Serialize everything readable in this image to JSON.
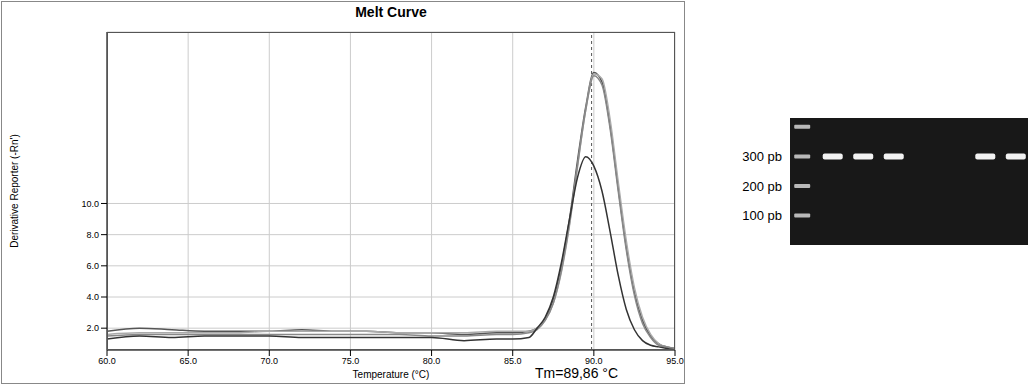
{
  "chart_data": [
    {
      "type": "line",
      "title": "Melt Curve",
      "x_label": "Temperature (°C)",
      "y_label": "Derivative Reporter (-Rn')",
      "x": [
        60,
        62,
        64,
        66,
        68,
        70,
        72,
        74,
        76,
        78,
        80,
        82,
        84,
        85,
        86,
        86.5,
        87,
        87.5,
        88,
        88.5,
        89,
        89.5,
        90,
        90.5,
        91,
        91.5,
        92,
        92.5,
        93,
        93.5,
        94,
        94.5,
        95
      ],
      "series": [
        {
          "color": "#555555",
          "values": [
            1.8,
            2.0,
            1.9,
            1.8,
            1.8,
            1.8,
            1.9,
            1.8,
            1.8,
            1.7,
            1.7,
            1.6,
            1.7,
            1.7,
            1.8,
            2.0,
            2.6,
            3.8,
            6.0,
            9.0,
            12.8,
            16.2,
            18.4,
            17.8,
            15.0,
            11.0,
            7.2,
            4.3,
            2.5,
            1.5,
            1.0,
            0.8,
            0.7
          ]
        },
        {
          "color": "#aaaaaa",
          "values": [
            1.6,
            1.7,
            1.7,
            1.7,
            1.7,
            1.8,
            1.8,
            1.8,
            1.8,
            1.7,
            1.7,
            1.7,
            1.8,
            1.8,
            1.8,
            2.0,
            2.5,
            3.6,
            5.6,
            8.6,
            12.4,
            16.0,
            18.3,
            18.0,
            15.4,
            11.4,
            7.6,
            4.6,
            2.7,
            1.6,
            1.0,
            0.8,
            0.7
          ]
        },
        {
          "color": "#888888",
          "values": [
            1.5,
            1.6,
            1.6,
            1.6,
            1.6,
            1.6,
            1.6,
            1.6,
            1.6,
            1.6,
            1.5,
            1.5,
            1.6,
            1.6,
            1.7,
            1.9,
            2.5,
            3.6,
            5.7,
            8.7,
            12.5,
            16.0,
            18.2,
            17.6,
            14.8,
            10.8,
            7.0,
            4.1,
            2.3,
            1.4,
            0.9,
            0.8,
            0.7
          ]
        },
        {
          "color": "#333333",
          "values": [
            1.3,
            1.5,
            1.4,
            1.5,
            1.5,
            1.5,
            1.4,
            1.4,
            1.4,
            1.4,
            1.4,
            1.2,
            1.3,
            1.3,
            1.4,
            2.0,
            2.7,
            4.0,
            6.2,
            9.0,
            11.7,
            13.0,
            12.4,
            10.8,
            8.2,
            5.4,
            3.2,
            1.9,
            1.2,
            0.9,
            0.8,
            0.7,
            0.6
          ]
        }
      ],
      "xlim": [
        60,
        95
      ],
      "xticks": [
        {
          "value": 60,
          "label": "60.0"
        },
        {
          "value": 65,
          "label": "65.0"
        },
        {
          "value": 70,
          "label": "70.0"
        },
        {
          "value": 75,
          "label": "75.0"
        },
        {
          "value": 80,
          "label": "80.0"
        },
        {
          "value": 85,
          "label": "85.0"
        },
        {
          "value": 90,
          "label": "90.0"
        },
        {
          "value": 95,
          "label": "95.0"
        }
      ],
      "ylim": [
        0.6,
        21
      ],
      "yticks": [
        {
          "value": 2,
          "label": "2.0"
        },
        {
          "value": 4,
          "label": "4.0"
        },
        {
          "value": 6,
          "label": "6.0"
        },
        {
          "value": 8,
          "label": "8.0"
        },
        {
          "value": 10,
          "label": "10.0"
        }
      ],
      "grid": true,
      "annotations": [
        {
          "text": "Tm=89,86 °C",
          "x": 89.86
        }
      ]
    },
    {
      "type": "gel",
      "ladder": [
        400,
        300,
        200,
        100
      ],
      "values": [
        300,
        300,
        300,
        null,
        null,
        300,
        300
      ],
      "ylim": [
        0,
        430
      ],
      "yticks": [
        {
          "value": 300,
          "label": "300 pb"
        },
        {
          "value": 200,
          "label": "200 pb"
        },
        {
          "value": 100,
          "label": "100 pb"
        }
      ],
      "tick_labels": "y"
    }
  ]
}
